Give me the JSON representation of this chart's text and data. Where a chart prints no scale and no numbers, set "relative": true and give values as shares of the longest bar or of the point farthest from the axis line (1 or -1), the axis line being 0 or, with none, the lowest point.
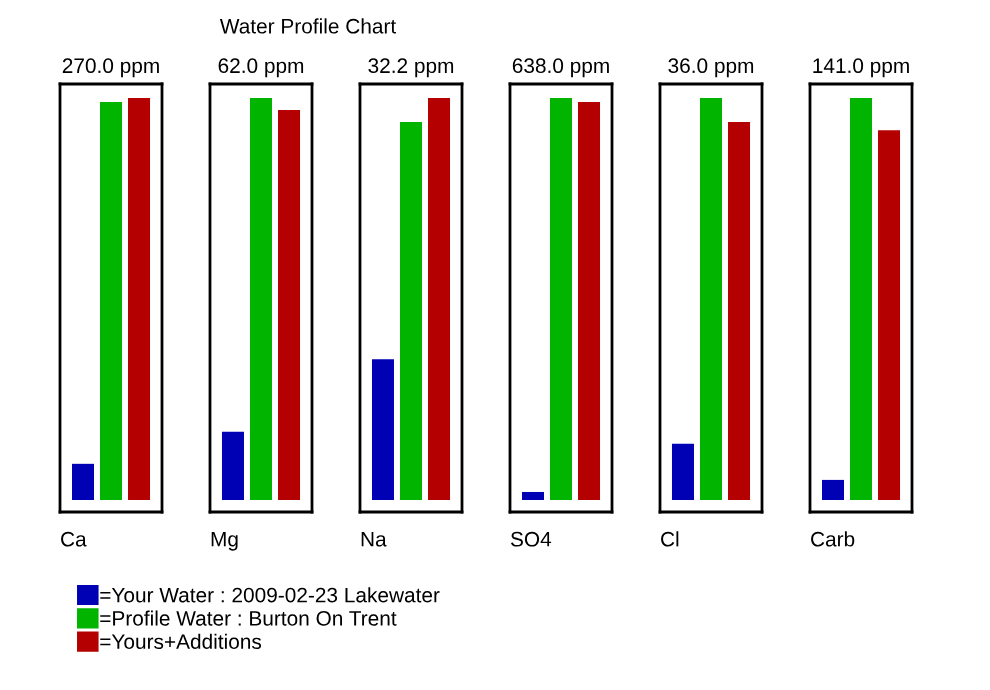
{
  "chart_data": [
    {
      "type": "bar",
      "subtitle": "270.0 ppm",
      "xlabel": "Ca",
      "categories": [
        null
      ],
      "relative": true,
      "legend": "bottom",
      "series": [
        {
          "name": "=Your Water : 2009-02-23 Lakewater",
          "color": "#0000b4",
          "values": [
            0.09
          ]
        },
        {
          "name": "=Profile Water : Burton On Trent",
          "color": "#00b400",
          "values": [
            0.99
          ]
        },
        {
          "name": "=Yours+Additions",
          "color": "#b40000",
          "values": [
            1
          ]
        }
      ]
    },
    {
      "type": "bar",
      "title": "Water Profile Chart",
      "subtitle": "62.0 ppm",
      "xlabel": "Mg",
      "categories": [
        null
      ],
      "relative": true,
      "series": [
        {
          "color": "#0000b4",
          "values": [
            0.17
          ]
        },
        {
          "color": "#00b400",
          "values": [
            1
          ]
        },
        {
          "color": "#b40000",
          "values": [
            0.97
          ]
        }
      ]
    },
    {
      "type": "bar",
      "subtitle": "32.2 ppm",
      "xlabel": "Na",
      "categories": [
        null
      ],
      "relative": true,
      "series": [
        {
          "color": "#0000b4",
          "values": [
            0.35
          ]
        },
        {
          "color": "#00b400",
          "values": [
            0.94
          ]
        },
        {
          "color": "#b40000",
          "values": [
            1
          ]
        }
      ]
    },
    {
      "type": "bar",
      "subtitle": "638.0 ppm",
      "xlabel": "SO4",
      "categories": [
        null
      ],
      "relative": true,
      "series": [
        {
          "color": "#0000b4",
          "values": [
            0.02
          ]
        },
        {
          "color": "#00b400",
          "values": [
            1
          ]
        },
        {
          "color": "#b40000",
          "values": [
            0.99
          ]
        }
      ]
    },
    {
      "type": "bar",
      "subtitle": "36.0 ppm",
      "xlabel": "Cl",
      "categories": [
        null
      ],
      "relative": true,
      "series": [
        {
          "color": "#0000b4",
          "values": [
            0.14
          ]
        },
        {
          "color": "#00b400",
          "values": [
            1
          ]
        },
        {
          "color": "#b40000",
          "values": [
            0.94
          ]
        }
      ]
    },
    {
      "type": "bar",
      "subtitle": "141.0 ppm",
      "xlabel": "Carb",
      "categories": [
        null
      ],
      "relative": true,
      "series": [
        {
          "color": "#0000b4",
          "values": [
            0.05
          ]
        },
        {
          "color": "#00b400",
          "values": [
            1
          ]
        },
        {
          "color": "#b40000",
          "values": [
            0.92
          ]
        }
      ]
    }
  ]
}
